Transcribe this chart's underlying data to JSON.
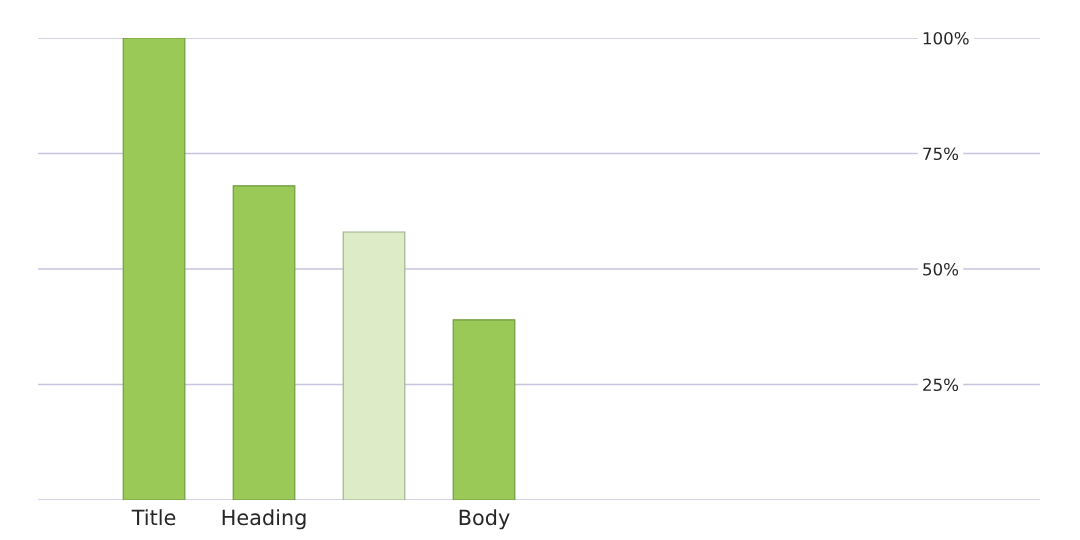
{
  "chart_data": {
    "type": "bar",
    "categories": [
      "Title",
      "Heading",
      null,
      "Body",
      null,
      null,
      null,
      null
    ],
    "values": [
      100,
      68,
      58,
      39,
      null,
      null,
      null,
      null
    ],
    "colors": [
      "#9bc957",
      "#9bc957",
      "#ddebc6",
      "#9bc957",
      null,
      null,
      null,
      null
    ],
    "ylim": [
      0,
      100
    ],
    "yticks": [
      {
        "value": 0,
        "label": null
      },
      {
        "value": 25,
        "label": "25%"
      },
      {
        "value": 50,
        "label": "50%"
      },
      {
        "value": 75,
        "label": "75%"
      },
      {
        "value": 100,
        "label": "100%"
      }
    ],
    "grid": "y"
  }
}
